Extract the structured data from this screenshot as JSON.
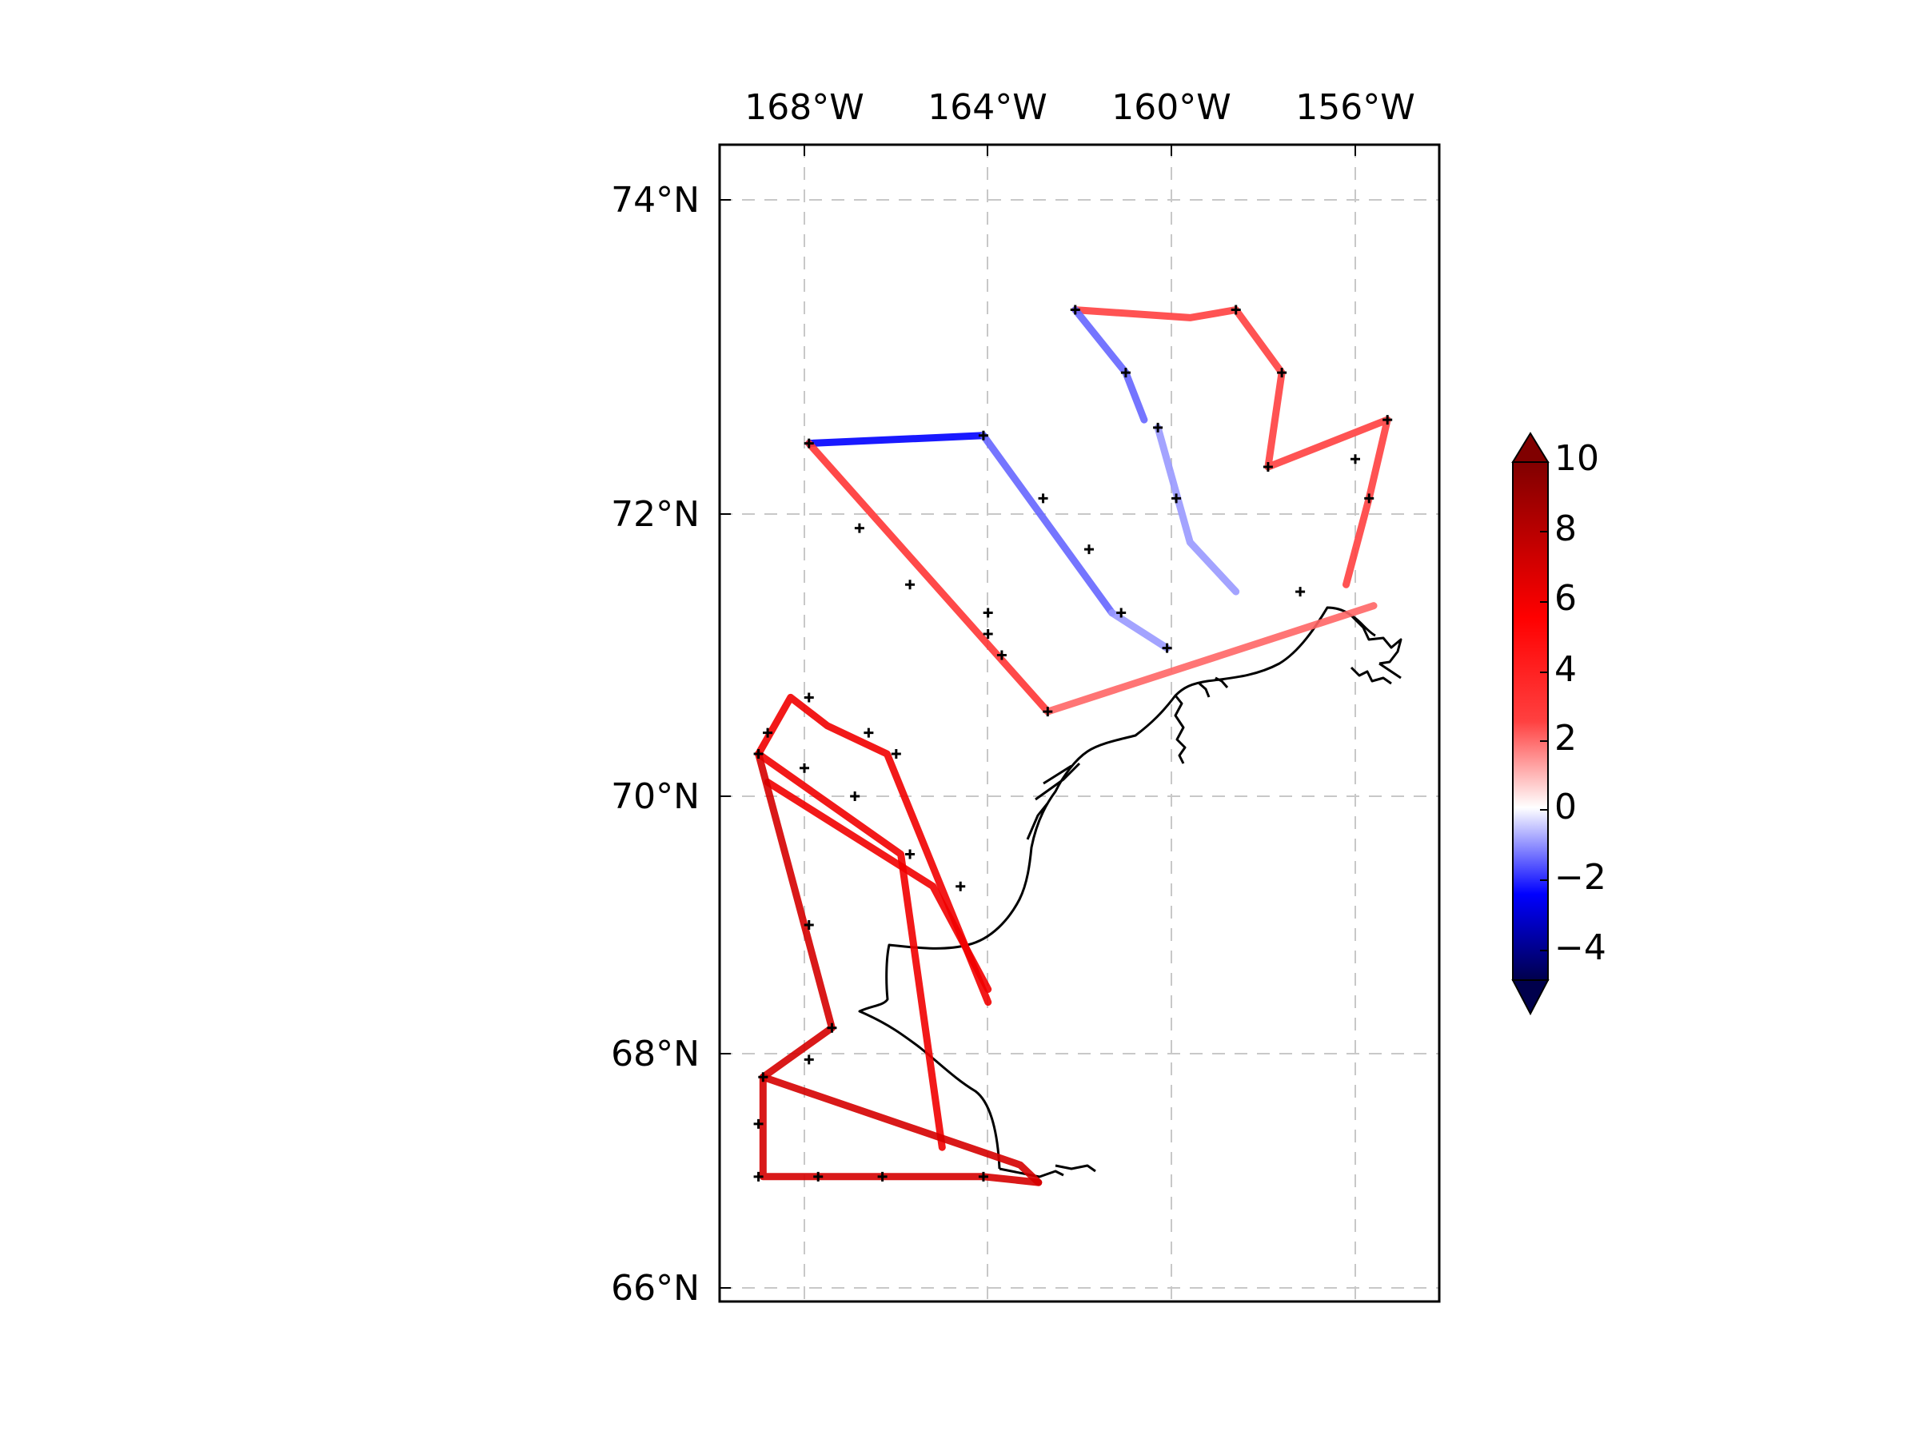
{
  "map": {
    "lon_labels": [
      "168°W",
      "164°W",
      "160°W",
      "156°W"
    ],
    "lat_labels": [
      "74°N",
      "72°N",
      "70°N",
      "68°N",
      "66°N"
    ],
    "gridlines": true,
    "projection": "mercator-like",
    "lon_range": [
      -169.9,
      -154.3
    ],
    "lat_range": [
      65.9,
      74.4
    ]
  },
  "colorbar": {
    "ticks": [
      "10",
      "8",
      "6",
      "4",
      "2",
      "0",
      "−2",
      "−4"
    ],
    "range": [
      -5,
      10
    ],
    "extend": "both",
    "colormap": "seismic",
    "colors": {
      "low": "#00004c",
      "mid": "#ffffff",
      "high": "#800000"
    }
  },
  "chart_data": {
    "type": "scatter",
    "description_of_marks": "ship track colored by value; black + markers at stations",
    "tracks": [
      {
        "points": [
          [
            -167.9,
            72.45
          ],
          [
            -164.1,
            72.5
          ]
        ],
        "value": -2.5
      },
      {
        "points": [
          [
            -164.1,
            72.5
          ],
          [
            -161.3,
            71.3
          ]
        ],
        "value": -1.5
      },
      {
        "points": [
          [
            -167.9,
            72.45
          ],
          [
            -162.7,
            70.6
          ]
        ],
        "value": 3
      },
      {
        "points": [
          [
            -162.7,
            70.6
          ],
          [
            -155.6,
            71.35
          ]
        ],
        "value": 2
      },
      {
        "points": [
          [
            -161.3,
            71.3
          ],
          [
            -160.1,
            71.05
          ]
        ],
        "value": -1
      },
      {
        "points": [
          [
            -162.1,
            73.3
          ],
          [
            -159.6,
            73.25
          ],
          [
            -158.6,
            73.3
          ],
          [
            -157.6,
            72.9
          ],
          [
            -157.9,
            72.3
          ],
          [
            -155.3,
            72.6
          ],
          [
            -155.7,
            72.1
          ],
          [
            -156.2,
            71.5
          ]
        ],
        "value": 2.5
      },
      {
        "points": [
          [
            -162.1,
            73.3
          ],
          [
            -161.0,
            72.9
          ],
          [
            -160.6,
            72.6
          ]
        ],
        "value": -1.5
      },
      {
        "points": [
          [
            -160.3,
            72.55
          ],
          [
            -159.6,
            71.8
          ],
          [
            -158.6,
            71.45
          ]
        ],
        "value": -1
      },
      {
        "points": [
          [
            -169.0,
            70.3
          ],
          [
            -168.3,
            70.7
          ],
          [
            -167.5,
            70.5
          ],
          [
            -166.2,
            70.3
          ],
          [
            -164.0,
            68.4
          ]
        ],
        "value": 6
      },
      {
        "points": [
          [
            -169.0,
            70.3
          ],
          [
            -165.9,
            69.55
          ],
          [
            -165.0,
            67.2
          ]
        ],
        "value": 6
      },
      {
        "points": [
          [
            -168.8,
            70.1
          ],
          [
            -165.2,
            69.3
          ],
          [
            -164.0,
            68.5
          ]
        ],
        "value": 6
      },
      {
        "points": [
          [
            -169.0,
            70.3
          ],
          [
            -167.4,
            68.2
          ],
          [
            -168.9,
            67.8
          ],
          [
            -168.9,
            66.95
          ],
          [
            -164.1,
            66.95
          ],
          [
            -162.9,
            66.9
          ]
        ],
        "value": 7
      },
      {
        "points": [
          [
            -168.9,
            67.8
          ],
          [
            -163.3,
            67.05
          ],
          [
            -162.9,
            66.9
          ]
        ],
        "value": 7
      }
    ],
    "stations": [
      [
        -162.1,
        73.3
      ],
      [
        -158.6,
        73.3
      ],
      [
        -161.0,
        72.9
      ],
      [
        -157.6,
        72.9
      ],
      [
        -155.3,
        72.6
      ],
      [
        -160.3,
        72.55
      ],
      [
        -156.0,
        72.35
      ],
      [
        -157.9,
        72.3
      ],
      [
        -167.9,
        72.45
      ],
      [
        -164.1,
        72.5
      ],
      [
        -162.8,
        72.1
      ],
      [
        -159.9,
        72.1
      ],
      [
        -155.7,
        72.1
      ],
      [
        -166.8,
        71.9
      ],
      [
        -161.8,
        71.75
      ],
      [
        -165.7,
        71.5
      ],
      [
        -157.2,
        71.45
      ],
      [
        -164.0,
        71.3
      ],
      [
        -161.1,
        71.3
      ],
      [
        -164.0,
        71.15
      ],
      [
        -163.7,
        71.0
      ],
      [
        -160.1,
        71.05
      ],
      [
        -162.7,
        70.6
      ],
      [
        -168.8,
        70.45
      ],
      [
        -167.9,
        70.7
      ],
      [
        -166.6,
        70.45
      ],
      [
        -166.0,
        70.3
      ],
      [
        -169.0,
        70.3
      ],
      [
        -168.0,
        70.2
      ],
      [
        -166.9,
        70.0
      ],
      [
        -165.7,
        69.55
      ],
      [
        -164.6,
        69.3
      ],
      [
        -167.9,
        69.0
      ],
      [
        -167.4,
        68.2
      ],
      [
        -167.9,
        67.95
      ],
      [
        -168.9,
        67.8
      ],
      [
        -169.0,
        67.4
      ],
      [
        -169.0,
        66.95
      ],
      [
        -167.7,
        66.95
      ],
      [
        -166.3,
        66.95
      ],
      [
        -164.1,
        66.95
      ]
    ]
  }
}
